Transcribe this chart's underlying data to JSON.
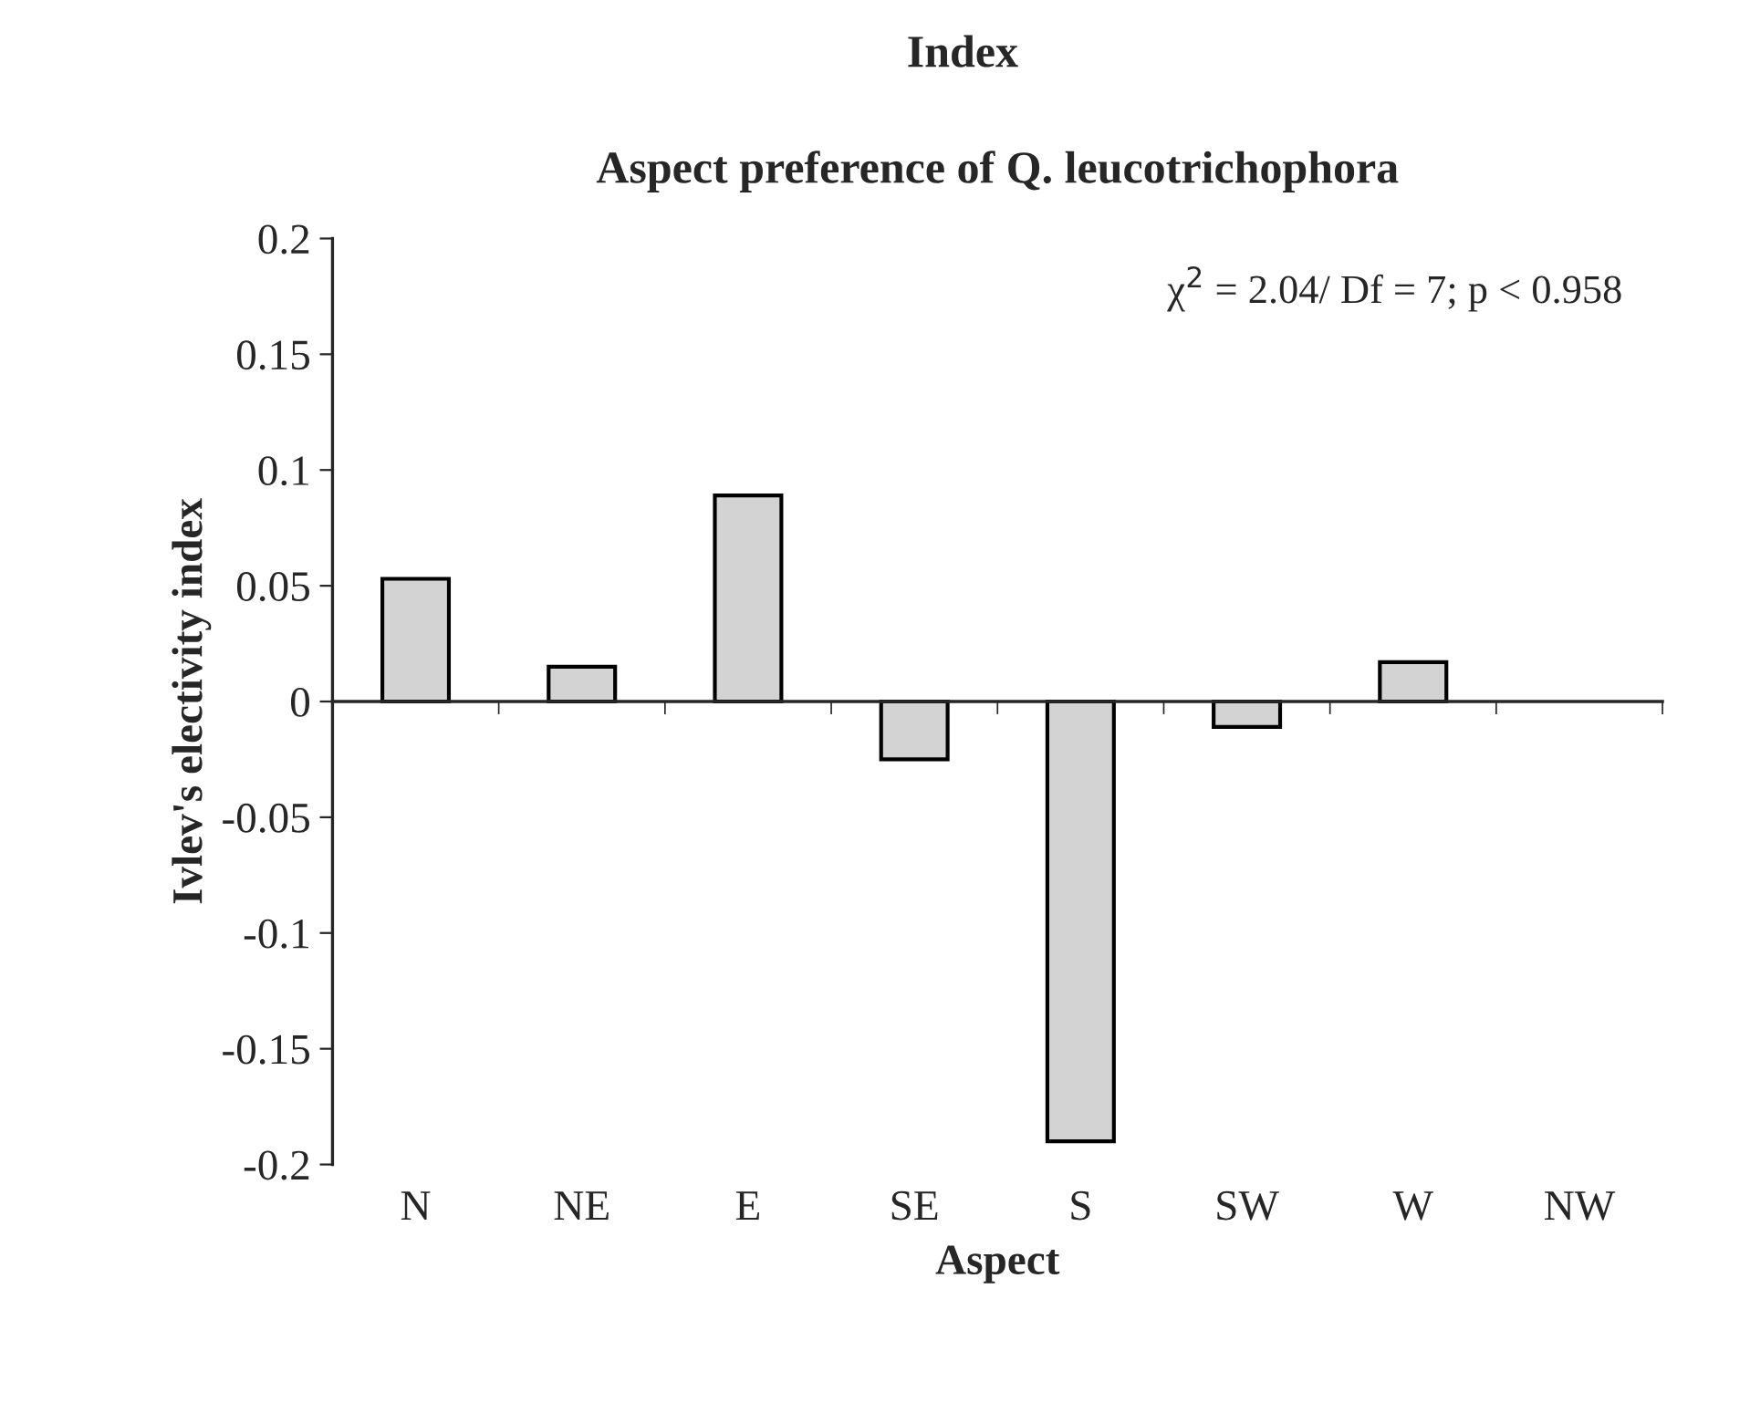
{
  "chart_data": {
    "type": "bar",
    "title": "Aspect preference of Q. leucotrichophora",
    "xlabel": "Aspect",
    "ylabel": "Ivlev's electivity index",
    "categories": [
      "N",
      "NE",
      "E",
      "SE",
      "S",
      "SW",
      "W",
      "NW"
    ],
    "values": [
      0.053,
      0.015,
      0.089,
      -0.025,
      -0.19,
      -0.011,
      0.017,
      null
    ],
    "color": "#d3d3d3",
    "ylim": [
      -0.2,
      0.2
    ],
    "yticks": [
      {
        "value": -0.2,
        "label": "-0.2"
      },
      {
        "value": -0.15,
        "label": "-0.15"
      },
      {
        "value": -0.1,
        "label": "-0.1"
      },
      {
        "value": -0.05,
        "label": "-0.05"
      },
      0,
      0.05,
      0.1,
      0.15,
      0.2
    ],
    "annotations": [
      "Index",
      "χ$^{2}$ = 2.04/ Df = 7; p < 0.958"
    ],
    "legend": false
  }
}
